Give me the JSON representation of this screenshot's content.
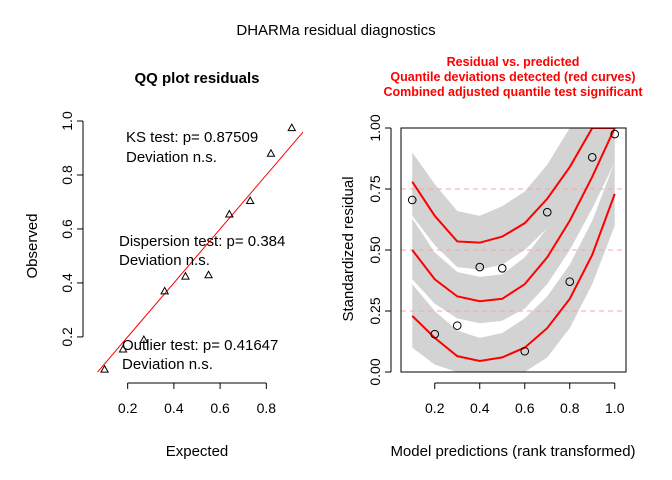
{
  "figure": {
    "title": "DHARMa residual diagnostics"
  },
  "qq": {
    "title": "QQ plot residuals",
    "ks_line1": "KS test: p= 0.87509",
    "ks_line2": "Deviation  n.s.",
    "disp_line1": "Dispersion test: p= 0.384",
    "disp_line2": "Deviation  n.s.",
    "out_line1": "Outlier test: p= 0.41647",
    "out_line2": "Deviation  n.s."
  },
  "resid": {
    "title_line1": "Residual vs. predicted",
    "title_line2": "Quantile deviations detected (red curves)",
    "title_line3": "Combined adjusted quantile test significant"
  },
  "colors": {
    "reference_line": "#ff0000",
    "quantile_curve": "#ff0000",
    "band": "#d3d3d3",
    "hline": "#f4a6a6",
    "points": "#000000"
  },
  "chart_data": [
    {
      "type": "scatter",
      "panel": "qq",
      "xlabel": "Expected",
      "ylabel": "Observed",
      "xlim": [
        0.05,
        0.95
      ],
      "ylim": [
        0.07,
        1.0
      ],
      "x_ticks": [
        0.2,
        0.4,
        0.6,
        0.8
      ],
      "x_tick_labels": [
        "0.2",
        "0.4",
        "0.6",
        "0.8"
      ],
      "y_ticks": [
        0.2,
        0.4,
        0.6,
        0.8,
        1.0
      ],
      "y_tick_labels": [
        "0.2",
        "0.4",
        "0.6",
        "0.8",
        "1.0"
      ],
      "marker": "triangle",
      "points": [
        {
          "x": 0.1,
          "y": 0.08
        },
        {
          "x": 0.18,
          "y": 0.155
        },
        {
          "x": 0.27,
          "y": 0.19
        },
        {
          "x": 0.36,
          "y": 0.37
        },
        {
          "x": 0.45,
          "y": 0.425
        },
        {
          "x": 0.55,
          "y": 0.43
        },
        {
          "x": 0.64,
          "y": 0.655
        },
        {
          "x": 0.73,
          "y": 0.705
        },
        {
          "x": 0.82,
          "y": 0.88
        },
        {
          "x": 0.91,
          "y": 0.975
        }
      ],
      "reference_line": {
        "x": [
          0.0,
          1.0
        ],
        "y": [
          0.0,
          1.0
        ]
      }
    },
    {
      "type": "scatter",
      "panel": "residual_vs_predicted",
      "xlabel": "Model predictions (rank transformed)",
      "ylabel": "Standardized residual",
      "xlim": [
        0.05,
        1.05
      ],
      "ylim": [
        0.0,
        1.0
      ],
      "x_ticks": [
        0.2,
        0.4,
        0.6,
        0.8,
        1.0
      ],
      "x_tick_labels": [
        "0.2",
        "0.4",
        "0.6",
        "0.8",
        "1.0"
      ],
      "y_ticks": [
        0.0,
        0.25,
        0.5,
        0.75,
        1.0
      ],
      "y_tick_labels": [
        "0.00",
        "0.25",
        "0.50",
        "0.75",
        "1.00"
      ],
      "marker": "circle",
      "points": [
        {
          "x": 0.1,
          "y": 0.705
        },
        {
          "x": 0.2,
          "y": 0.155
        },
        {
          "x": 0.3,
          "y": 0.19
        },
        {
          "x": 0.4,
          "y": 0.43
        },
        {
          "x": 0.5,
          "y": 0.425
        },
        {
          "x": 0.6,
          "y": 0.085
        },
        {
          "x": 0.7,
          "y": 0.655
        },
        {
          "x": 0.8,
          "y": 0.37
        },
        {
          "x": 0.9,
          "y": 0.88
        },
        {
          "x": 1.0,
          "y": 0.975
        }
      ],
      "reference_hlines": [
        0.25,
        0.5,
        0.75
      ],
      "quantile_curves": [
        {
          "quantile": 0.25,
          "x": [
            0.1,
            0.2,
            0.3,
            0.4,
            0.5,
            0.6,
            0.7,
            0.8,
            0.9,
            1.0
          ],
          "y": [
            0.23,
            0.14,
            0.065,
            0.045,
            0.06,
            0.1,
            0.18,
            0.3,
            0.48,
            0.73
          ],
          "band_low": [
            0.1,
            0.03,
            0.0,
            0.0,
            0.0,
            0.0,
            0.06,
            0.18,
            0.36,
            0.6
          ],
          "band_high": [
            0.36,
            0.25,
            0.17,
            0.14,
            0.16,
            0.22,
            0.31,
            0.44,
            0.62,
            0.86
          ]
        },
        {
          "quantile": 0.5,
          "x": [
            0.1,
            0.2,
            0.3,
            0.4,
            0.5,
            0.6,
            0.7,
            0.8,
            0.9,
            1.0
          ],
          "y": [
            0.5,
            0.38,
            0.31,
            0.29,
            0.3,
            0.36,
            0.47,
            0.62,
            0.8,
            1.0
          ],
          "band_low": [
            0.38,
            0.28,
            0.22,
            0.2,
            0.21,
            0.26,
            0.36,
            0.5,
            0.67,
            0.86
          ],
          "band_high": [
            0.63,
            0.49,
            0.41,
            0.39,
            0.4,
            0.47,
            0.59,
            0.75,
            0.93,
            1.0
          ]
        },
        {
          "quantile": 0.75,
          "x": [
            0.1,
            0.2,
            0.3,
            0.4,
            0.5,
            0.6,
            0.7,
            0.8,
            0.9,
            1.0
          ],
          "y": [
            0.78,
            0.64,
            0.535,
            0.53,
            0.555,
            0.61,
            0.71,
            0.84,
            1.0,
            1.0
          ],
          "band_low": [
            0.64,
            0.52,
            0.43,
            0.42,
            0.44,
            0.5,
            0.59,
            0.71,
            0.86,
            1.0
          ],
          "band_high": [
            0.9,
            0.77,
            0.66,
            0.64,
            0.68,
            0.74,
            0.85,
            1.0,
            1.0,
            1.0
          ]
        }
      ]
    }
  ]
}
